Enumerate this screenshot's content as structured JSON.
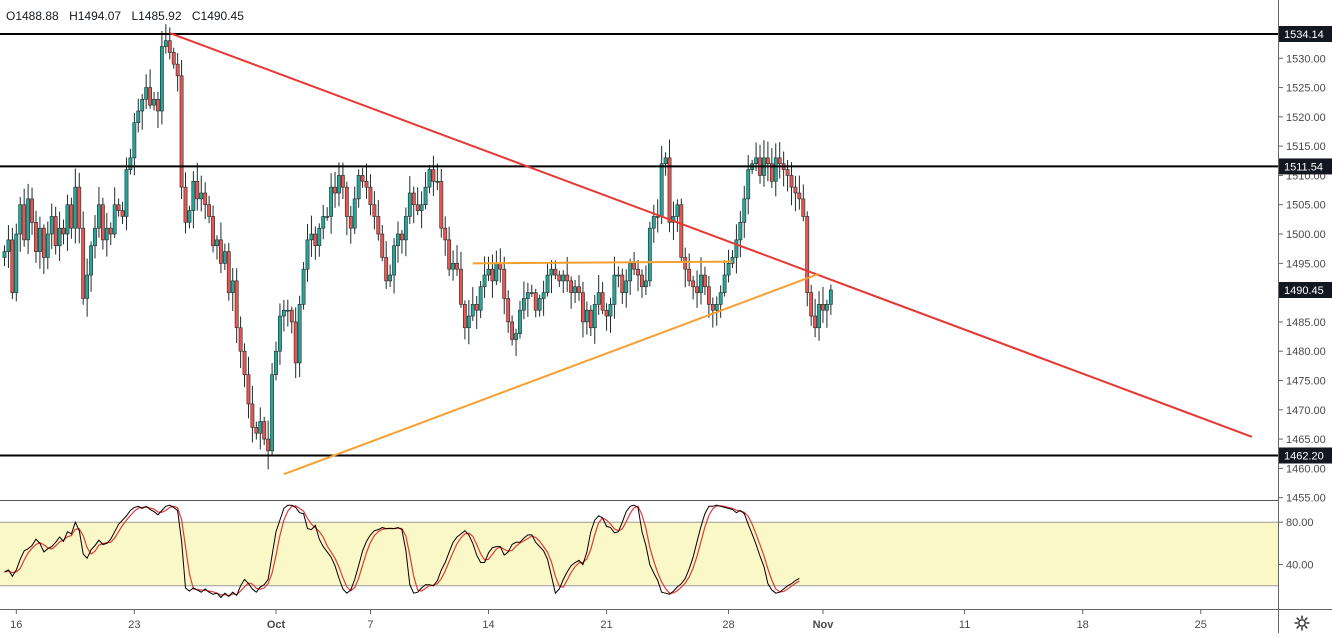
{
  "ohlc": {
    "open": "O1488.88",
    "high": "H1494.07",
    "low": "L1485.92",
    "close": "C1490.45"
  },
  "colors": {
    "up": "#26a69a",
    "down": "#ef5350",
    "candle_wick": "#1e2b2a",
    "trendline_red": "#e53935",
    "trendline_orange": "#f5a030",
    "hline": "#000000",
    "stoch_band": "#fbf8c8",
    "stoch_k": "#000000",
    "stoch_d": "#e53935",
    "axis_text": "#4a4a4a",
    "label_bg": "#131722",
    "label_text": "#ffffff"
  },
  "icons": {
    "settings": "gear-icon"
  },
  "chart_data": {
    "type": "candlestick",
    "title": "",
    "price_axis": {
      "ticks": [
        "1530.00",
        "1525.00",
        "1520.00",
        "1515.00",
        "1510.00",
        "1505.00",
        "1500.00",
        "1495.00",
        "1490.00",
        "1485.00",
        "1480.00",
        "1475.00",
        "1470.00",
        "1465.00",
        "1460.00",
        "1455.00"
      ],
      "range": [
        1454,
        1538
      ]
    },
    "price_labels": [
      {
        "value": 1534.14,
        "text": "1534.14",
        "style": "dark"
      },
      {
        "value": 1511.54,
        "text": "1511.54",
        "style": "dark"
      },
      {
        "value": 1490.45,
        "text": "1490.45",
        "style": "dark"
      },
      {
        "value": 1462.2,
        "text": "1462.20",
        "style": "dark"
      }
    ],
    "horizontal_levels": [
      1534.14,
      1511.54,
      1462.2
    ],
    "time_axis": {
      "labels": [
        {
          "text": "16",
          "bar": 3
        },
        {
          "text": "23",
          "bar": 33
        },
        {
          "text": "Oct",
          "bar": 69,
          "bold": true
        },
        {
          "text": "7",
          "bar": 93
        },
        {
          "text": "14",
          "bar": 123
        },
        {
          "text": "21",
          "bar": 153
        },
        {
          "text": "28",
          "bar": 184
        },
        {
          "text": "Nov",
          "bar": 208,
          "bold": true
        },
        {
          "text": "11",
          "bar": 244
        },
        {
          "text": "18",
          "bar": 274
        },
        {
          "text": "25",
          "bar": 304
        }
      ]
    },
    "trendlines": [
      {
        "name": "red-down",
        "color": "red",
        "from": {
          "bar": 42,
          "price": 1534.3
        },
        "to": {
          "bar": 317,
          "price": 1465.4
        }
      },
      {
        "name": "orange-up",
        "color": "orange",
        "from": {
          "bar": 71,
          "price": 1459.0
        },
        "to": {
          "bar": 207,
          "price": 1493.2
        }
      },
      {
        "name": "orange-flat",
        "color": "orange",
        "from": {
          "bar": 119,
          "price": 1495.0
        },
        "to": {
          "bar": 185,
          "price": 1495.3
        }
      }
    ],
    "closes": [
      1497,
      1499,
      1490,
      1500,
      1505,
      1499,
      1506,
      1502,
      1497,
      1501,
      1496,
      1500,
      1503,
      1498,
      1501,
      1500,
      1505,
      1501,
      1508,
      1501,
      1489,
      1493,
      1498,
      1501,
      1505,
      1499,
      1501,
      1500,
      1505,
      1504,
      1503,
      1511,
      1513,
      1519,
      1521,
      1523,
      1525,
      1522,
      1523,
      1521,
      1532,
      1533,
      1531,
      1529,
      1527,
      1508,
      1502,
      1504,
      1509,
      1506,
      1507,
      1505,
      1503,
      1498,
      1499,
      1495,
      1497,
      1490,
      1492,
      1484,
      1480,
      1476,
      1471,
      1467,
      1466,
      1468,
      1465,
      1463,
      1476,
      1480,
      1486,
      1487,
      1487,
      1485,
      1478,
      1488,
      1494,
      1499,
      1500,
      1498,
      1501,
      1503,
      1503,
      1508,
      1507,
      1510,
      1508,
      1503,
      1501,
      1506,
      1510,
      1509,
      1508,
      1505,
      1503,
      1500,
      1496,
      1492,
      1493,
      1498,
      1500,
      1499,
      1503,
      1507,
      1505,
      1504,
      1505,
      1508,
      1511,
      1509,
      1509,
      1501,
      1499,
      1494,
      1495,
      1494,
      1488,
      1484,
      1486,
      1488,
      1487,
      1491,
      1493,
      1494,
      1492,
      1495,
      1494,
      1489,
      1485,
      1482,
      1483,
      1487,
      1489,
      1490,
      1490,
      1487,
      1489,
      1490,
      1493,
      1494,
      1493,
      1492,
      1493,
      1492,
      1490,
      1491,
      1490,
      1485,
      1487,
      1484,
      1488,
      1490,
      1487,
      1486,
      1488,
      1493,
      1493,
      1490,
      1492,
      1495,
      1494,
      1493,
      1491,
      1492,
      1501,
      1503,
      1503,
      1512,
      1513,
      1502,
      1503,
      1505,
      1496,
      1494,
      1492,
      1491,
      1490,
      1493,
      1491,
      1488,
      1487,
      1488,
      1490,
      1493,
      1495,
      1496,
      1499,
      1502,
      1506,
      1511,
      1512,
      1513,
      1510,
      1513,
      1512,
      1509,
      1513,
      1512,
      1511,
      1510,
      1508,
      1507,
      1506,
      1503,
      1490,
      1486,
      1484,
      1488,
      1487,
      1488,
      1490.45
    ],
    "stochastic": {
      "axis_ticks": [
        "80.00",
        "40.00"
      ],
      "band": [
        20,
        80
      ],
      "k": [
        33,
        35,
        29,
        35,
        45,
        53,
        55,
        58,
        64,
        60,
        52,
        55,
        57,
        61,
        66,
        62,
        71,
        69,
        80,
        72,
        50,
        46,
        54,
        58,
        63,
        59,
        60,
        64,
        71,
        78,
        82,
        86,
        91,
        94,
        95,
        93,
        95,
        92,
        90,
        87,
        91,
        95,
        96,
        94,
        91,
        62,
        18,
        15,
        18,
        16,
        14,
        17,
        14,
        12,
        13,
        9,
        13,
        10,
        14,
        11,
        20,
        26,
        22,
        17,
        14,
        19,
        21,
        26,
        49,
        71,
        82,
        93,
        96,
        96,
        94,
        89,
        88,
        74,
        73,
        77,
        64,
        57,
        52,
        47,
        39,
        27,
        17,
        13,
        16,
        26,
        39,
        53,
        62,
        68,
        72,
        73,
        75,
        74,
        74,
        74,
        75,
        73,
        53,
        21,
        13,
        14,
        18,
        21,
        21,
        20,
        25,
        35,
        42,
        52,
        61,
        66,
        69,
        72,
        68,
        60,
        49,
        42,
        42,
        51,
        56,
        57,
        57,
        49,
        52,
        59,
        61,
        61,
        65,
        68,
        68,
        61,
        57,
        53,
        45,
        29,
        13,
        17,
        26,
        33,
        39,
        42,
        44,
        40,
        52,
        71,
        82,
        86,
        84,
        76,
        75,
        70,
        71,
        80,
        90,
        95,
        96,
        94,
        71,
        58,
        40,
        32,
        25,
        14,
        13,
        12,
        15,
        19,
        22,
        27,
        36,
        47,
        62,
        76,
        88,
        95,
        95,
        96,
        95,
        94,
        93,
        92,
        89,
        91,
        88,
        78,
        69,
        59,
        48,
        38,
        22,
        16,
        13,
        14,
        17,
        20,
        22,
        25,
        27
      ]
    }
  }
}
